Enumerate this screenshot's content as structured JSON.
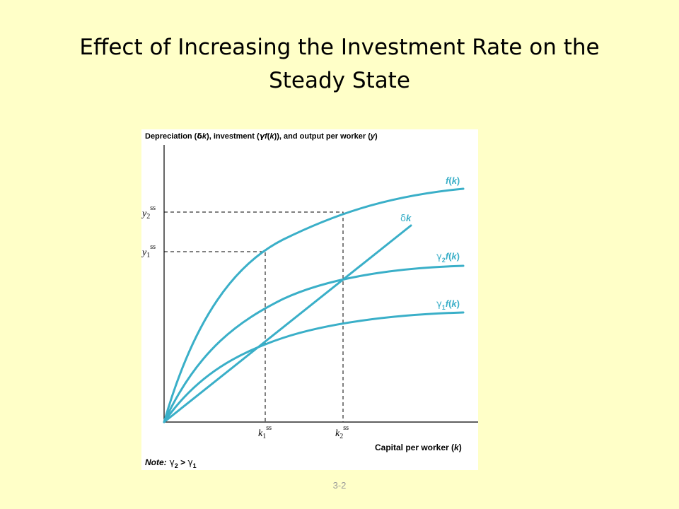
{
  "slide": {
    "title_line1": "Effect of Increasing the Investment Rate on the",
    "title_line2": "Steady State",
    "slide_number": "3-2"
  },
  "diagram": {
    "y_axis_title": {
      "p1": "Depreciation (",
      "delta": "δ",
      "p2": "k",
      "p3": "), investment (",
      "gamma": "γ",
      "p4": "f",
      "p5": "(",
      "p6": "k",
      "p7": ")), and output per worker (",
      "p8": "y",
      "p9": ")"
    },
    "x_axis_title": {
      "p1": "Capital per worker (",
      "p2": "k",
      "p3": ")"
    },
    "curves": {
      "fk": {
        "f": "f",
        "open": "(",
        "k": "k",
        "close": ")"
      },
      "delta_k": {
        "delta": "δ",
        "k": "k"
      },
      "g2fk": {
        "gamma": "γ",
        "sub": "2",
        "f": "f",
        "open": "(",
        "k": "k",
        "close": ")"
      },
      "g1fk": {
        "gamma": "γ",
        "sub": "1",
        "f": "f",
        "open": "(",
        "k": "k",
        "close": ")"
      }
    },
    "y_ticks": {
      "y2": {
        "base": "y",
        "sub": "2",
        "sup": "ss"
      },
      "y1": {
        "base": "y",
        "sub": "1",
        "sup": "ss"
      }
    },
    "x_ticks": {
      "k1": {
        "base": "k",
        "sub": "1",
        "sup": "ss"
      },
      "k2": {
        "base": "k",
        "sub": "2",
        "sup": "ss"
      }
    },
    "note": {
      "label": "Note:",
      "g2": "γ",
      "s2": "2",
      "gt": " > ",
      "g1": "γ",
      "s1": "1"
    },
    "colors": {
      "curve": "#3AAFC8",
      "background": "#FFFFC8"
    }
  }
}
